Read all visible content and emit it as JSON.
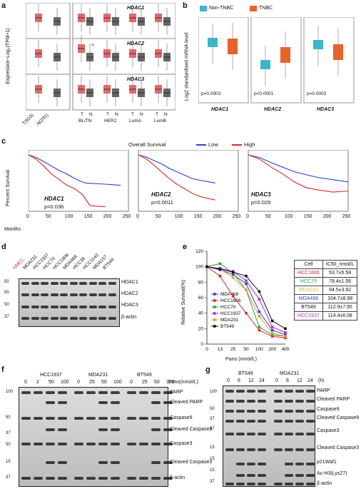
{
  "panels": {
    "a": "a",
    "b": "b",
    "c": "c",
    "d": "d",
    "e": "e",
    "f": "f",
    "g": "g"
  },
  "a": {
    "ylabel": "Expression-Log₂(TPM+1)",
    "genes": [
      "HDAC1",
      "HDAC2",
      "HDAC3"
    ],
    "left_xlabels": [
      "T(810)",
      "N(291)"
    ],
    "groups": [
      "BL/TN",
      "HER2",
      "LumA",
      "LumB"
    ],
    "tn": [
      "T",
      "N"
    ],
    "star": "*"
  },
  "b": {
    "ylabel": "Log2 standardised mRNA level",
    "legend": [
      "Non-TNBC",
      "TNBC"
    ],
    "colors": {
      "non_tnbc": "#3ab7c9",
      "tnbc": "#e8622a"
    },
    "genes": [
      "HDAC1",
      "HDAC2",
      "HDAC3"
    ],
    "pvalues": [
      "p=0.0003",
      "p<0.0001",
      "p=0.0003"
    ]
  },
  "c": {
    "title": "Overall Survival",
    "legend": [
      "Low",
      "High"
    ],
    "colors": {
      "low": "#2b3fd6",
      "high": "#e0272a"
    },
    "ylabel": "Percent Survival",
    "xlabel": "Months",
    "xticks": [
      "0",
      "50",
      "100",
      "150",
      "200",
      "250"
    ],
    "genes": [
      "HDAC1",
      "HDAC2",
      "HDAC3"
    ],
    "pvalues": [
      "p=0.036",
      "p=0.0011",
      "p=0.029"
    ]
  },
  "d": {
    "lanes": [
      "HMEC",
      "MDA231",
      "HCC1937",
      "HCC70",
      "HCC1806",
      "MDA468",
      "HCC38",
      "HCC1143",
      "MDA157",
      "BT549"
    ],
    "labels": [
      "HDAC1",
      "HDAC2",
      "HDAC3",
      "β-actin"
    ],
    "ladder": [
      "50",
      "50",
      "50",
      "37"
    ]
  },
  "e": {
    "ylabel": "Relative Survival(%)",
    "xlabel": "Pano (nmol/L)",
    "xticks": [
      "0",
      "13",
      "25",
      "50",
      "100",
      "200",
      "400"
    ],
    "yticks": [
      "0",
      "20",
      "40",
      "60",
      "80",
      "100",
      "120"
    ],
    "series": [
      {
        "name": "MDA468",
        "color": "#2b3fd6"
      },
      {
        "name": "HCC1806",
        "color": "#e0272a"
      },
      {
        "name": "HCC70",
        "color": "#2aa04a"
      },
      {
        "name": "HCC1937",
        "color": "#c026d3"
      },
      {
        "name": "MDA231",
        "color": "#f29a1f"
      },
      {
        "name": "BT549",
        "color": "#111111"
      }
    ],
    "table_header": [
      "Cell",
      "IC50_nmol/L"
    ],
    "table": [
      {
        "cell": "HCC1806",
        "value": "53.7±5.58",
        "color": "#e0272a"
      },
      {
        "cell": "HCC70",
        "value": "78.4±1.56",
        "color": "#2aa04a"
      },
      {
        "cell": "MDA231",
        "value": "94.5±3.92",
        "color": "#f2b21f"
      },
      {
        "cell": "MDA468",
        "value": "104.7±8.98",
        "color": "#2b3fd6"
      },
      {
        "cell": "BT549",
        "value": "112.9±7.95",
        "color": "#111111"
      },
      {
        "cell": "HCC1937",
        "value": "114.4±6.08",
        "color": "#c026d3"
      }
    ]
  },
  "chart_data": {
    "type": "line",
    "x": [
      "0",
      "13",
      "25",
      "50",
      "100",
      "200",
      "400"
    ],
    "xlabel": "Pano (nmol/L)",
    "ylabel": "Relative Survival(%)",
    "ylim": [
      0,
      120
    ],
    "series": [
      {
        "name": "MDA468",
        "values": [
          100,
          96,
          90,
          78,
          42,
          18,
          12
        ]
      },
      {
        "name": "HCC1806",
        "values": [
          100,
          88,
          62,
          40,
          18,
          10,
          8
        ]
      },
      {
        "name": "HCC70",
        "values": [
          100,
          104,
          92,
          70,
          22,
          12,
          10
        ]
      },
      {
        "name": "HCC1937",
        "values": [
          100,
          98,
          94,
          82,
          58,
          22,
          15
        ]
      },
      {
        "name": "MDA231",
        "values": [
          100,
          97,
          86,
          70,
          36,
          14,
          10
        ]
      },
      {
        "name": "BT549",
        "values": [
          100,
          97,
          93,
          88,
          68,
          30,
          20
        ]
      }
    ]
  },
  "f": {
    "cells": [
      "HCC1937",
      "MDA231",
      "BT549"
    ],
    "doses": [
      "0",
      "2",
      "50",
      "100",
      "0",
      "25",
      "50",
      "100",
      "0",
      "25",
      "50",
      "100"
    ],
    "dose_label": "Pano(nmol/L)",
    "labels": [
      "PARP",
      "Cleaved PARP",
      "Caspase9",
      "Cleaved Caspase9",
      "Caspase3",
      "Cleaved Caspase3",
      "β-actin"
    ],
    "ladder": [
      "100",
      "50",
      "37",
      "50",
      "15",
      "37"
    ]
  },
  "g": {
    "cells": [
      "BT549",
      "MDA231"
    ],
    "times": [
      "0",
      "6",
      "12",
      "24",
      "0",
      "6",
      "12",
      "24"
    ],
    "time_label": "(h)",
    "labels": [
      "PARP",
      "Cleaved PARP",
      "Caspase9",
      "Cleaved Caspase9",
      "Caspase3",
      "Cleaved Caspase3",
      "p21Waf1",
      "Ac-H3(Lys27)",
      "β-actin"
    ],
    "ladder": [
      "100",
      "50",
      "37",
      "37",
      "15",
      "15",
      "15",
      "37"
    ]
  }
}
